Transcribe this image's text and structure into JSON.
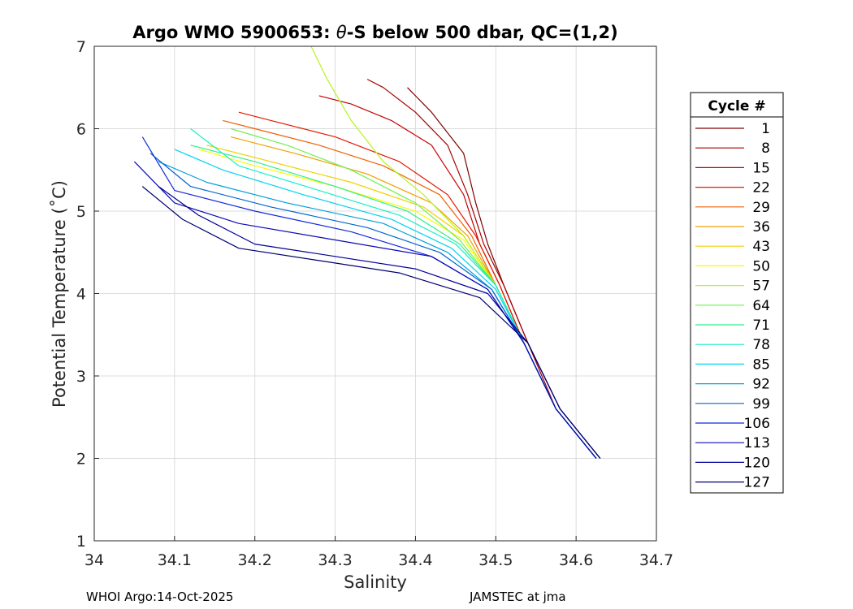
{
  "chart_data": {
    "type": "line",
    "title": "Argo WMO 5900653: θ-S below 500 dbar,  QC=(1,2)",
    "title_parts": {
      "prefix": "Argo WMO 5900653: ",
      "theta": "θ",
      "suffix": "-S below 500 dbar,  QC=(1,2)"
    },
    "xlabel": "Salinity",
    "ylabel": "Potential Temperature (˚C)",
    "xlim": [
      34.0,
      34.7
    ],
    "ylim": [
      1,
      7
    ],
    "x_ticks": [
      "34",
      "34.1",
      "34.2",
      "34.3",
      "34.4",
      "34.5",
      "34.6",
      "34.7"
    ],
    "y_ticks": [
      "1",
      "2",
      "3",
      "4",
      "5",
      "6",
      "7"
    ],
    "grid": true,
    "legend": {
      "title": "Cycle #",
      "placement": "right",
      "entries": [
        {
          "label": "1",
          "color": "#7f0000"
        },
        {
          "label": "8",
          "color": "#a50000"
        },
        {
          "label": "15",
          "color": "#c80000"
        },
        {
          "label": "22",
          "color": "#e41a00"
        },
        {
          "label": "29",
          "color": "#f06000"
        },
        {
          "label": "36",
          "color": "#f0a000"
        },
        {
          "label": "43",
          "color": "#f0d000"
        },
        {
          "label": "50",
          "color": "#fafa00"
        },
        {
          "label": "57",
          "color": "#b4f41e"
        },
        {
          "label": "64",
          "color": "#6ef050"
        },
        {
          "label": "71",
          "color": "#2ef08a"
        },
        {
          "label": "78",
          "color": "#14f0c8"
        },
        {
          "label": "85",
          "color": "#00d2f0"
        },
        {
          "label": "92",
          "color": "#00a0dc"
        },
        {
          "label": "99",
          "color": "#0064d2"
        },
        {
          "label": "106",
          "color": "#1428dc"
        },
        {
          "label": "113",
          "color": "#0a0ab4"
        },
        {
          "label": "120",
          "color": "#000096"
        },
        {
          "label": "127",
          "color": "#000070"
        }
      ]
    },
    "series": [
      {
        "name": "1",
        "color": "#7f0000",
        "points": [
          [
            34.63,
            2.0
          ],
          [
            34.58,
            2.6
          ],
          [
            34.54,
            3.4
          ],
          [
            34.51,
            4.1
          ],
          [
            34.49,
            4.6
          ],
          [
            34.475,
            5.1
          ],
          [
            34.46,
            5.7
          ],
          [
            34.42,
            6.2
          ],
          [
            34.39,
            6.5
          ]
        ]
      },
      {
        "name": "8",
        "color": "#a50000",
        "points": [
          [
            34.625,
            2.0
          ],
          [
            34.575,
            2.6
          ],
          [
            34.54,
            3.4
          ],
          [
            34.51,
            4.1
          ],
          [
            34.485,
            4.6
          ],
          [
            34.465,
            5.2
          ],
          [
            34.44,
            5.8
          ],
          [
            34.4,
            6.2
          ],
          [
            34.36,
            6.5
          ],
          [
            34.34,
            6.6
          ]
        ]
      },
      {
        "name": "15",
        "color": "#c80000",
        "points": [
          [
            34.625,
            2.0
          ],
          [
            34.575,
            2.6
          ],
          [
            34.535,
            3.4
          ],
          [
            34.505,
            4.1
          ],
          [
            34.48,
            4.6
          ],
          [
            34.46,
            5.2
          ],
          [
            34.42,
            5.8
          ],
          [
            34.37,
            6.1
          ],
          [
            34.32,
            6.3
          ],
          [
            34.28,
            6.4
          ]
        ]
      },
      {
        "name": "22",
        "color": "#e41a00",
        "points": [
          [
            34.625,
            2.0
          ],
          [
            34.575,
            2.6
          ],
          [
            34.535,
            3.4
          ],
          [
            34.505,
            4.1
          ],
          [
            34.475,
            4.7
          ],
          [
            34.44,
            5.2
          ],
          [
            34.38,
            5.6
          ],
          [
            34.3,
            5.9
          ],
          [
            34.22,
            6.1
          ],
          [
            34.18,
            6.2
          ]
        ]
      },
      {
        "name": "29",
        "color": "#f06000",
        "points": [
          [
            34.625,
            2.0
          ],
          [
            34.575,
            2.6
          ],
          [
            34.535,
            3.4
          ],
          [
            34.5,
            4.1
          ],
          [
            34.47,
            4.7
          ],
          [
            34.43,
            5.2
          ],
          [
            34.36,
            5.55
          ],
          [
            34.28,
            5.8
          ],
          [
            34.2,
            6.0
          ],
          [
            34.16,
            6.1
          ]
        ]
      },
      {
        "name": "36",
        "color": "#f0a000",
        "points": [
          [
            34.625,
            2.0
          ],
          [
            34.575,
            2.6
          ],
          [
            34.535,
            3.4
          ],
          [
            34.5,
            4.1
          ],
          [
            34.465,
            4.7
          ],
          [
            34.42,
            5.1
          ],
          [
            34.34,
            5.45
          ],
          [
            34.25,
            5.7
          ],
          [
            34.17,
            5.9
          ]
        ]
      },
      {
        "name": "43",
        "color": "#f0d000",
        "points": [
          [
            34.625,
            2.0
          ],
          [
            34.575,
            2.6
          ],
          [
            34.535,
            3.4
          ],
          [
            34.5,
            4.1
          ],
          [
            34.46,
            4.7
          ],
          [
            34.41,
            5.05
          ],
          [
            34.32,
            5.35
          ],
          [
            34.22,
            5.6
          ],
          [
            34.14,
            5.8
          ]
        ]
      },
      {
        "name": "50",
        "color": "#fafa00",
        "points": [
          [
            34.625,
            2.0
          ],
          [
            34.575,
            2.6
          ],
          [
            34.535,
            3.4
          ],
          [
            34.5,
            4.1
          ],
          [
            34.46,
            4.65
          ],
          [
            34.4,
            5.0
          ],
          [
            34.3,
            5.3
          ],
          [
            34.2,
            5.55
          ],
          [
            34.13,
            5.75
          ]
        ]
      },
      {
        "name": "57",
        "color": "#b4f41e",
        "points": [
          [
            34.625,
            2.0
          ],
          [
            34.575,
            2.6
          ],
          [
            34.535,
            3.4
          ],
          [
            34.5,
            4.1
          ],
          [
            34.46,
            4.7
          ],
          [
            34.41,
            5.2
          ],
          [
            34.36,
            5.6
          ],
          [
            34.32,
            6.1
          ],
          [
            34.29,
            6.6
          ],
          [
            34.27,
            7.0
          ]
        ]
      },
      {
        "name": "64",
        "color": "#6ef050",
        "points": [
          [
            34.625,
            2.0
          ],
          [
            34.575,
            2.6
          ],
          [
            34.535,
            3.4
          ],
          [
            34.5,
            4.1
          ],
          [
            34.455,
            4.65
          ],
          [
            34.4,
            5.1
          ],
          [
            34.32,
            5.5
          ],
          [
            34.24,
            5.8
          ],
          [
            34.17,
            6.0
          ]
        ]
      },
      {
        "name": "71",
        "color": "#2ef08a",
        "points": [
          [
            34.625,
            2.0
          ],
          [
            34.575,
            2.6
          ],
          [
            34.535,
            3.4
          ],
          [
            34.5,
            4.1
          ],
          [
            34.455,
            4.6
          ],
          [
            34.39,
            5.0
          ],
          [
            34.3,
            5.3
          ],
          [
            34.2,
            5.6
          ],
          [
            34.12,
            5.8
          ]
        ]
      },
      {
        "name": "78",
        "color": "#14f0c8",
        "points": [
          [
            34.625,
            2.0
          ],
          [
            34.575,
            2.6
          ],
          [
            34.535,
            3.4
          ],
          [
            34.5,
            4.1
          ],
          [
            34.45,
            4.6
          ],
          [
            34.38,
            4.95
          ],
          [
            34.28,
            5.25
          ],
          [
            34.18,
            5.55
          ],
          [
            34.12,
            6.0
          ]
        ]
      },
      {
        "name": "85",
        "color": "#00d2f0",
        "points": [
          [
            34.625,
            2.0
          ],
          [
            34.575,
            2.6
          ],
          [
            34.535,
            3.4
          ],
          [
            34.5,
            4.05
          ],
          [
            34.445,
            4.55
          ],
          [
            34.37,
            4.9
          ],
          [
            34.26,
            5.2
          ],
          [
            34.16,
            5.5
          ],
          [
            34.1,
            5.75
          ]
        ]
      },
      {
        "name": "92",
        "color": "#00a0dc",
        "points": [
          [
            34.625,
            2.0
          ],
          [
            34.575,
            2.6
          ],
          [
            34.535,
            3.4
          ],
          [
            34.495,
            4.05
          ],
          [
            34.44,
            4.5
          ],
          [
            34.36,
            4.85
          ],
          [
            34.24,
            5.1
          ],
          [
            34.14,
            5.35
          ],
          [
            34.08,
            5.6
          ]
        ]
      },
      {
        "name": "99",
        "color": "#0064d2",
        "points": [
          [
            34.625,
            2.0
          ],
          [
            34.575,
            2.6
          ],
          [
            34.535,
            3.4
          ],
          [
            34.495,
            4.05
          ],
          [
            34.43,
            4.5
          ],
          [
            34.34,
            4.8
          ],
          [
            34.22,
            5.05
          ],
          [
            34.12,
            5.3
          ],
          [
            34.07,
            5.7
          ]
        ]
      },
      {
        "name": "106",
        "color": "#1428dc",
        "points": [
          [
            34.625,
            2.0
          ],
          [
            34.575,
            2.6
          ],
          [
            34.535,
            3.4
          ],
          [
            34.49,
            4.05
          ],
          [
            34.42,
            4.45
          ],
          [
            34.32,
            4.75
          ],
          [
            34.2,
            5.0
          ],
          [
            34.1,
            5.25
          ],
          [
            34.06,
            5.9
          ]
        ]
      },
      {
        "name": "113",
        "color": "#0a0ab4",
        "points": [
          [
            34.625,
            2.0
          ],
          [
            34.575,
            2.6
          ],
          [
            34.535,
            3.4
          ],
          [
            34.49,
            4.05
          ],
          [
            34.42,
            4.45
          ],
          [
            34.3,
            4.65
          ],
          [
            34.18,
            4.85
          ],
          [
            34.1,
            5.1
          ],
          [
            34.05,
            5.6
          ]
        ]
      },
      {
        "name": "120",
        "color": "#000096",
        "points": [
          [
            34.63,
            2.0
          ],
          [
            34.58,
            2.6
          ],
          [
            34.54,
            3.4
          ],
          [
            34.49,
            4.0
          ],
          [
            34.4,
            4.3
          ],
          [
            34.3,
            4.45
          ],
          [
            34.2,
            4.6
          ],
          [
            34.13,
            4.95
          ],
          [
            34.08,
            5.3
          ]
        ]
      },
      {
        "name": "127",
        "color": "#000070",
        "points": [
          [
            34.63,
            2.0
          ],
          [
            34.58,
            2.6
          ],
          [
            34.54,
            3.4
          ],
          [
            34.48,
            3.95
          ],
          [
            34.38,
            4.25
          ],
          [
            34.28,
            4.4
          ],
          [
            34.18,
            4.55
          ],
          [
            34.11,
            4.9
          ],
          [
            34.06,
            5.3
          ]
        ]
      }
    ]
  },
  "footer": {
    "left": "WHOI Argo:14-Oct-2025",
    "right": "JAMSTEC at jma"
  }
}
